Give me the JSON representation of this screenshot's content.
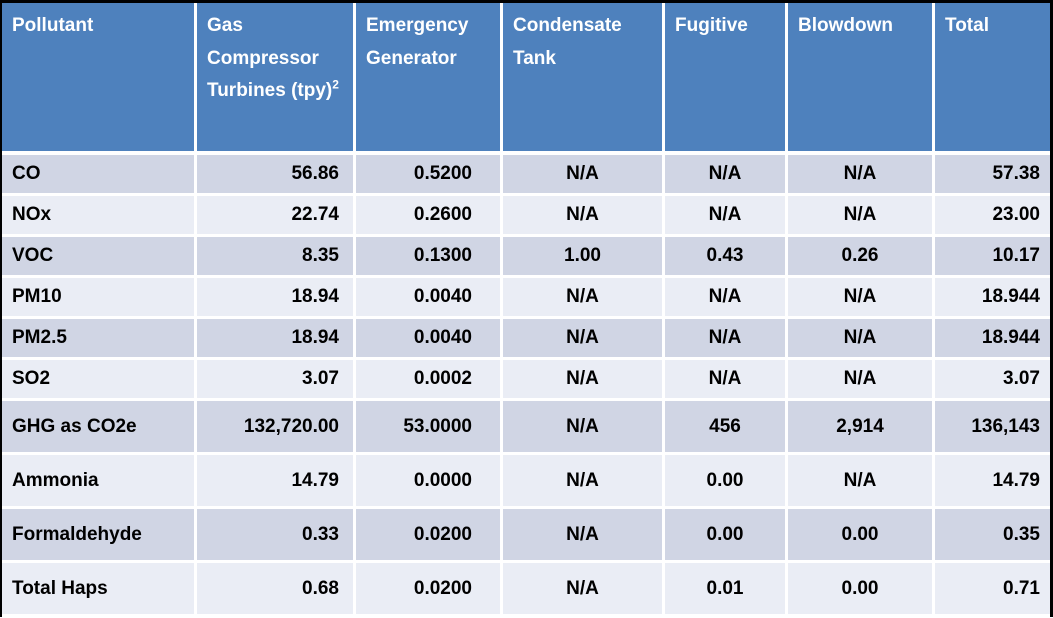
{
  "colors": {
    "header_bg": "#4E81BD",
    "header_text": "#FFFFFF",
    "row_dark": "#D0D5E4",
    "row_light": "#EAEDF5",
    "grid": "#FFFFFF",
    "outer_border": "#000000",
    "body_text": "#000000"
  },
  "chart_data": {
    "type": "table",
    "columns": [
      {
        "label": "Pollutant"
      },
      {
        "label": "Gas Compressor Turbines (tpy)",
        "superscript": "2"
      },
      {
        "label": "Emergency Generator"
      },
      {
        "label": "Condensate Tank"
      },
      {
        "label": "Fugitive"
      },
      {
        "label": "Blowdown"
      },
      {
        "label": "Total"
      }
    ],
    "rows": [
      [
        "CO",
        "56.86",
        "0.5200",
        "N/A",
        "N/A",
        "N/A",
        "57.38"
      ],
      [
        "NOx",
        "22.74",
        "0.2600",
        "N/A",
        "N/A",
        "N/A",
        "23.00"
      ],
      [
        "VOC",
        "8.35",
        "0.1300",
        "1.00",
        "0.43",
        "0.26",
        "10.17"
      ],
      [
        "PM10",
        "18.94",
        "0.0040",
        "N/A",
        "N/A",
        "N/A",
        "18.944"
      ],
      [
        "PM2.5",
        "18.94",
        "0.0040",
        "N/A",
        "N/A",
        "N/A",
        "18.944"
      ],
      [
        "SO2",
        "3.07",
        "0.0002",
        "N/A",
        "N/A",
        "N/A",
        "3.07"
      ],
      [
        "GHG as CO2e",
        "132,720.00",
        "53.0000",
        "N/A",
        "456",
        "2,914",
        "136,143"
      ],
      [
        "Ammonia",
        "14.79",
        "0.0000",
        "N/A",
        "0.00",
        "N/A",
        "14.79"
      ],
      [
        "Formaldehyde",
        "0.33",
        "0.0200",
        "N/A",
        "0.00",
        "0.00",
        "0.35"
      ],
      [
        "Total Haps",
        "0.68",
        "0.0200",
        "N/A",
        "0.01",
        "0.00",
        "0.71"
      ]
    ]
  }
}
